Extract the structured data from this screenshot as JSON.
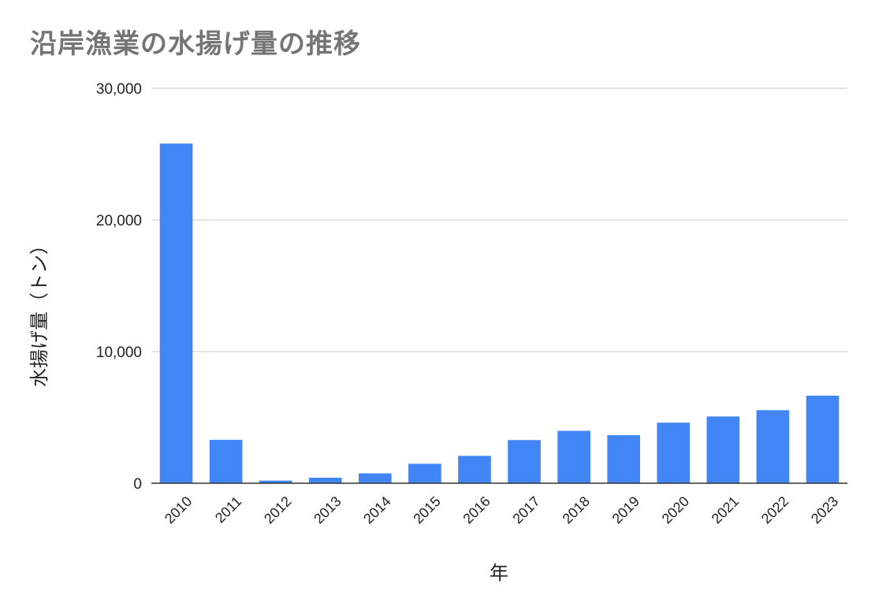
{
  "chart_data": {
    "type": "bar",
    "title": "沿岸漁業の水揚げ量の推移",
    "xlabel": "年",
    "ylabel": "水揚げ量（トン）",
    "categories": [
      "2010",
      "2011",
      "2012",
      "2013",
      "2014",
      "2015",
      "2016",
      "2017",
      "2018",
      "2019",
      "2020",
      "2021",
      "2022",
      "2023"
    ],
    "values": [
      25800,
      3300,
      200,
      420,
      750,
      1480,
      2080,
      3280,
      3980,
      3650,
      4600,
      5070,
      5550,
      6650
    ],
    "ylim": [
      0,
      30000
    ],
    "yticks": [
      0,
      10000,
      20000,
      30000
    ],
    "ytick_labels": [
      "0",
      "10,000",
      "20,000",
      "30,000"
    ],
    "grid": true,
    "bar_color": "#4285f4"
  }
}
